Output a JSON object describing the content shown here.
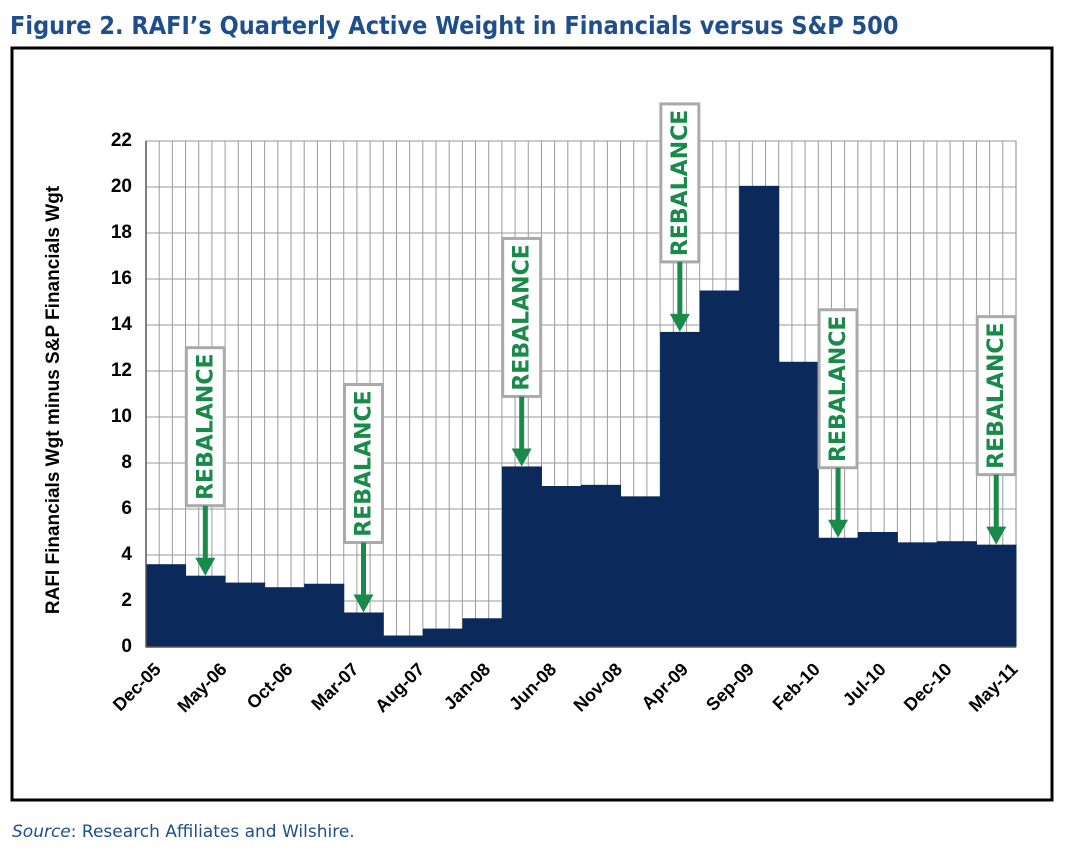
{
  "chart_data": {
    "type": "step-area",
    "title": "Figure 2. RAFI’s Quarterly Active Weight in Financials versus S&P 500",
    "y_label": "RAFI Financials Wgt minus S&P Financials Wgt",
    "source_label": "Source",
    "source_text": ": Research Affiliates and Wilshire.",
    "color": "#0b2a5b",
    "grid": true,
    "categories": [
      "Dec-05",
      null,
      null,
      null,
      null,
      "May-06",
      null,
      null,
      null,
      null,
      "Oct-06",
      null,
      null,
      null,
      null,
      "Mar-07",
      null,
      null,
      null,
      null,
      "Aug-07",
      null,
      null,
      null,
      null,
      "Jan-08",
      null,
      null,
      null,
      null,
      "Jun-08",
      null,
      null,
      null,
      null,
      "Nov-08",
      null,
      null,
      null,
      null,
      "Apr-09",
      null,
      null,
      null,
      null,
      "Sep-09",
      null,
      null,
      null,
      null,
      "Feb-10",
      null,
      null,
      null,
      null,
      "Jul-10",
      null,
      null,
      null,
      null,
      "Dec-10",
      null,
      null,
      null,
      null,
      "May-11"
    ],
    "values": [
      3.6,
      3.6,
      3.6,
      3.1,
      3.1,
      3.1,
      2.8,
      2.8,
      2.8,
      2.6,
      2.6,
      2.6,
      2.75,
      2.75,
      2.75,
      1.5,
      1.5,
      1.5,
      0.5,
      0.5,
      0.5,
      0.8,
      0.8,
      0.8,
      1.25,
      1.25,
      1.25,
      7.85,
      7.85,
      7.85,
      7.0,
      7.0,
      7.0,
      7.05,
      7.05,
      7.05,
      6.55,
      6.55,
      6.55,
      13.7,
      13.7,
      13.7,
      15.5,
      15.5,
      15.5,
      20.05,
      20.05,
      20.05,
      12.4,
      12.4,
      12.4,
      4.75,
      4.75,
      4.75,
      5.0,
      5.0,
      5.0,
      4.55,
      4.55,
      4.55,
      4.6,
      4.6,
      4.6,
      4.45,
      4.45,
      4.45
    ],
    "ylim": [
      0,
      22
    ],
    "yticks": [
      0,
      2,
      4,
      6,
      8,
      10,
      12,
      14,
      16,
      18,
      20,
      22
    ],
    "annotations": [
      "REBALANCE",
      "REBALANCE",
      "REBALANCE",
      "REBALANCE",
      "REBALANCE",
      "REBALANCE"
    ]
  }
}
